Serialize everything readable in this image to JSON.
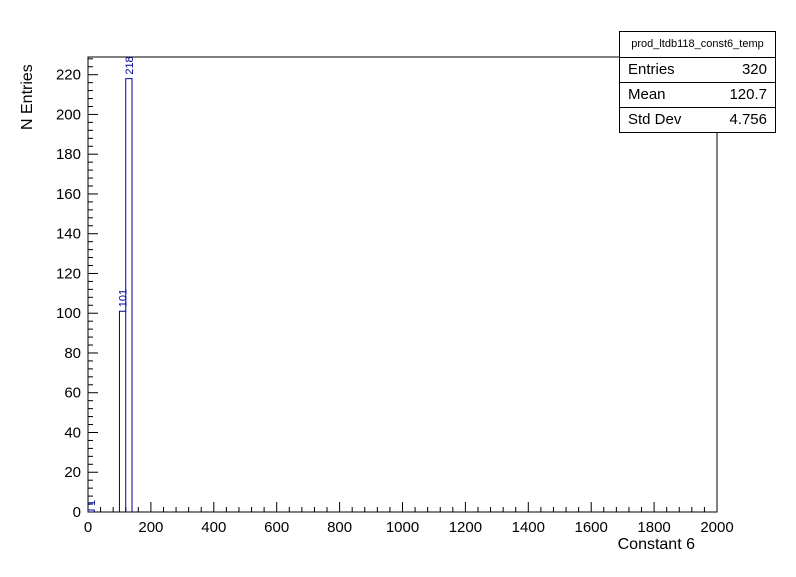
{
  "chart_data": {
    "type": "bar",
    "title": "",
    "xlabel": "Constant 6",
    "ylabel": "N Entries",
    "xlim": [
      0,
      2000
    ],
    "ylim": [
      0,
      228.9
    ],
    "grid": false,
    "x_tick_labels": [
      "0",
      "200",
      "400",
      "600",
      "800",
      "1000",
      "1200",
      "1400",
      "1600",
      "1800",
      "2000"
    ],
    "y_tick_labels": [
      "0",
      "20",
      "40",
      "60",
      "80",
      "100",
      "120",
      "140",
      "160",
      "180",
      "200",
      "220"
    ],
    "bins": [
      {
        "x0": 0,
        "x1": 20,
        "count": 1,
        "label": "1"
      },
      {
        "x0": 100,
        "x1": 120,
        "count": 101,
        "label": "101"
      },
      {
        "x0": 120,
        "x1": 140,
        "count": 218,
        "label": "218"
      }
    ],
    "line_color": "#000099",
    "stats_box": {
      "title": "prod_ltdb118_const6_temp",
      "rows": [
        {
          "label": "Entries",
          "value": "320"
        },
        {
          "label": "Mean",
          "value": "120.7"
        },
        {
          "label": "Std Dev",
          "value": "4.756"
        }
      ]
    }
  }
}
